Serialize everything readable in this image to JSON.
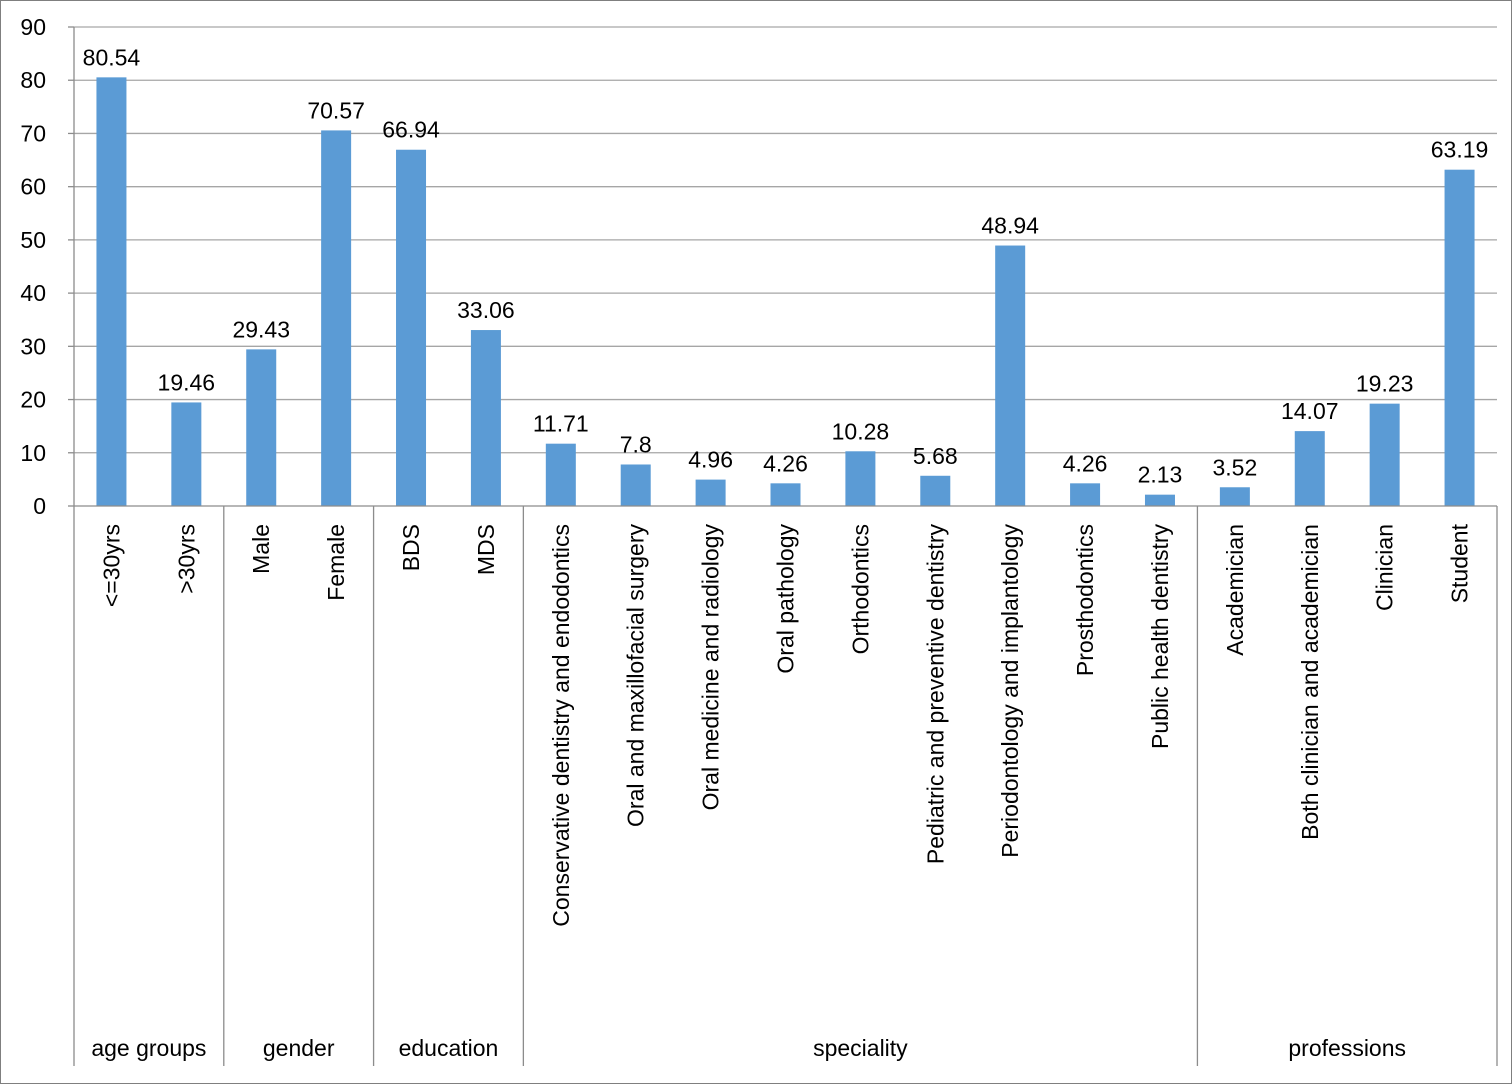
{
  "chart_data": {
    "type": "bar",
    "title": "",
    "xlabel": "",
    "ylabel": "",
    "ylim": [
      0,
      90
    ],
    "yticks": [
      0,
      10,
      20,
      30,
      40,
      50,
      60,
      70,
      80,
      90
    ],
    "grid": true,
    "legend": "none",
    "bar_color": "#5b9bd5",
    "groups": [
      {
        "name": "age groups",
        "categories": [
          "<=30yrs",
          ">30yrs"
        ]
      },
      {
        "name": "gender",
        "categories": [
          "Male",
          "Female"
        ]
      },
      {
        "name": "education",
        "categories": [
          "BDS",
          "MDS"
        ]
      },
      {
        "name": "speciality",
        "categories": [
          "Conservative dentistry and endodontics",
          "Oral and maxillofacial surgery",
          "Oral medicine and radiology",
          "Oral pathology",
          "Orthodontics",
          "Pediatric and preventive dentistry",
          "Periodontology and implantology",
          "Prosthodontics",
          "Public health dentistry"
        ]
      },
      {
        "name": "professions",
        "categories": [
          "Academician",
          "Both clinician and academician",
          "Clinician",
          "Student"
        ]
      }
    ],
    "categories": [
      "<=30yrs",
      ">30yrs",
      "Male",
      "Female",
      "BDS",
      "MDS",
      "Conservative dentistry and endodontics",
      "Oral and maxillofacial surgery",
      "Oral medicine and radiology",
      "Oral pathology",
      "Orthodontics",
      "Pediatric and preventive dentistry",
      "Periodontology and implantology",
      "Prosthodontics",
      "Public health dentistry",
      "Academician",
      "Both clinician and academician",
      "Clinician",
      "Student"
    ],
    "values": [
      80.54,
      19.46,
      29.43,
      70.57,
      66.94,
      33.06,
      11.71,
      7.8,
      4.96,
      4.26,
      10.28,
      5.68,
      48.94,
      4.26,
      2.13,
      3.52,
      14.07,
      19.23,
      63.19
    ],
    "value_labels": [
      "80.54",
      "19.46",
      "29.43",
      "70.57",
      "66.94",
      "33.06",
      "11.71",
      "7.8",
      "4.96",
      "4.26",
      "10.28",
      "5.68",
      "48.94",
      "4.26",
      "2.13",
      "3.52",
      "14.07",
      "19.23",
      "63.19"
    ]
  }
}
